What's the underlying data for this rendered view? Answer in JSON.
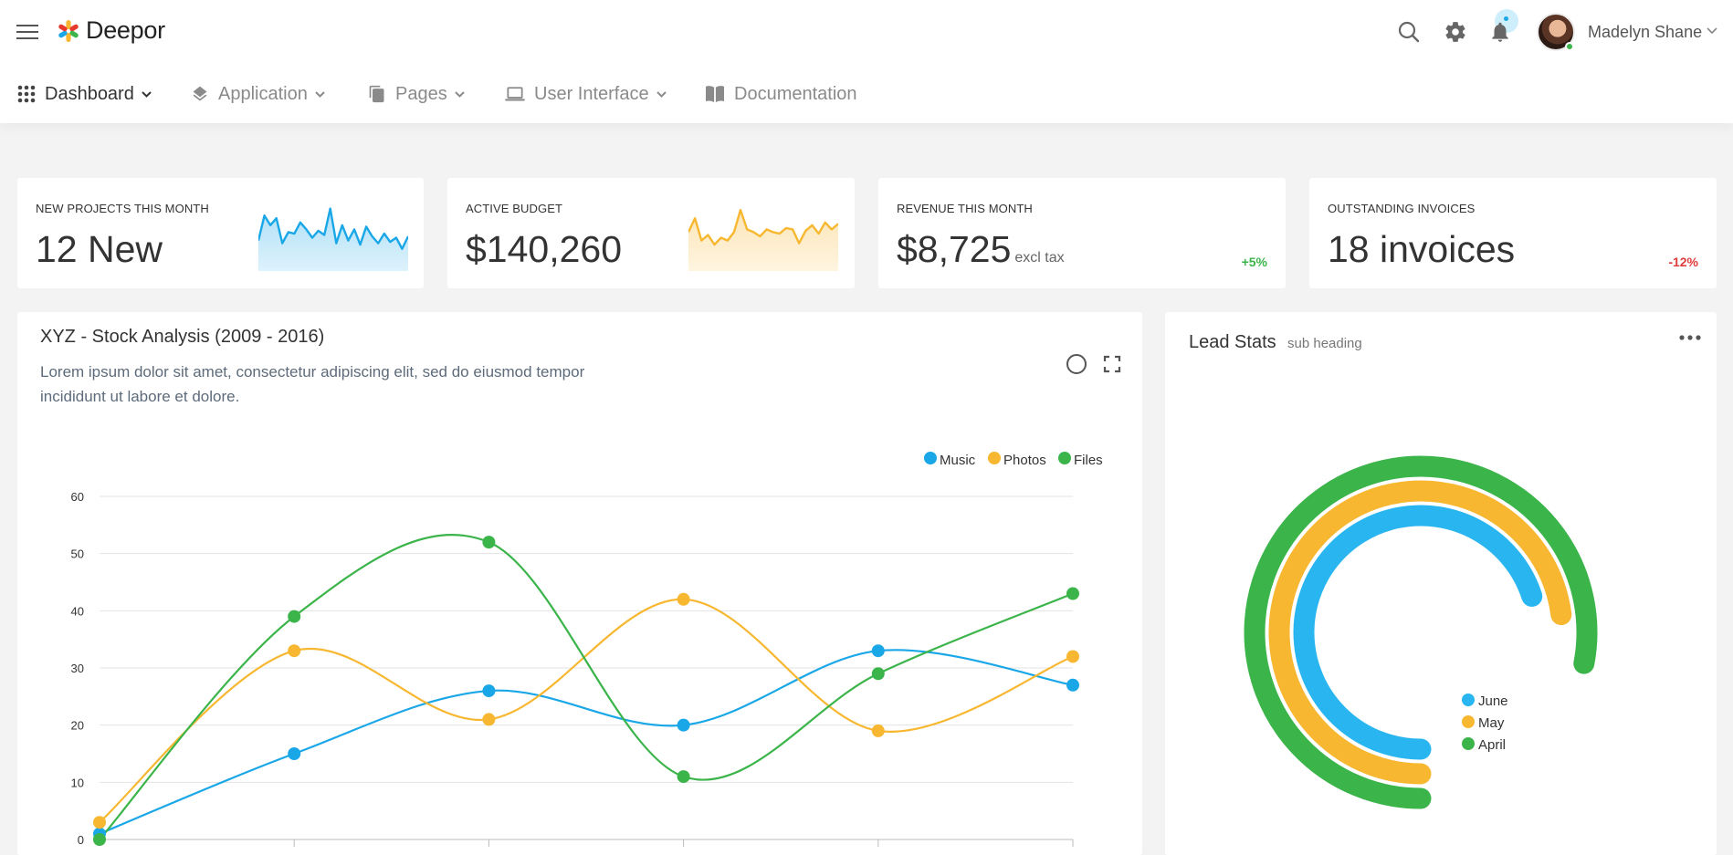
{
  "app": {
    "brand": "Deepor"
  },
  "user": {
    "name": "Madelyn Shane"
  },
  "nav": [
    {
      "label": "Dashboard",
      "icon": "grid-icon",
      "active": true,
      "caret": true
    },
    {
      "label": "Application",
      "icon": "layers-icon",
      "active": false,
      "caret": true
    },
    {
      "label": "Pages",
      "icon": "pages-icon",
      "active": false,
      "caret": true
    },
    {
      "label": "User Interface",
      "icon": "laptop-icon",
      "active": false,
      "caret": true
    },
    {
      "label": "Documentation",
      "icon": "book-icon",
      "active": false,
      "caret": false
    }
  ],
  "stats": [
    {
      "title": "NEW PROJECTS THIS MONTH",
      "value": "12 New",
      "sub": "",
      "change": "",
      "spark_color": "#1aa7e8",
      "spark": [
        22,
        40,
        33,
        38,
        20,
        28,
        27,
        35,
        30,
        24,
        29,
        26,
        45,
        20,
        33,
        22,
        30,
        19,
        32,
        25,
        20,
        27,
        21,
        24,
        16,
        25
      ]
    },
    {
      "title": "ACTIVE BUDGET",
      "value": "$140,260",
      "sub": "",
      "change": "",
      "spark_color": "#f7b731",
      "spark": [
        28,
        38,
        22,
        26,
        19,
        24,
        22,
        28,
        44,
        30,
        28,
        25,
        30,
        28,
        27,
        31,
        30,
        20,
        29,
        33,
        27,
        35,
        30,
        34
      ]
    },
    {
      "title": "REVENUE THIS MONTH",
      "value": "$8,725",
      "sub": "excl tax",
      "change": "+5%",
      "change_dir": "up"
    },
    {
      "title": "OUTSTANDING INVOICES",
      "value": "18 invoices",
      "sub": "",
      "change": "-12%",
      "change_dir": "down"
    }
  ],
  "stock": {
    "title": "XYZ - Stock Analysis (2009 - 2016)",
    "description": "Lorem ipsum dolor sit amet, consectetur adipiscing elit, sed do eiusmod tempor incididunt ut labore et dolore."
  },
  "lead": {
    "title": "Lead Stats",
    "sub": "sub heading"
  },
  "colors": {
    "blue": "#1aa7e8",
    "yellow": "#f7b731",
    "green": "#3bb44a",
    "radial_blue": "#29b6f0"
  },
  "chart_data": [
    {
      "type": "line",
      "title": "XYZ - Stock Analysis (2009 - 2016)",
      "x": [
        0,
        1,
        2,
        3,
        4,
        5
      ],
      "ylim": [
        0,
        60
      ],
      "yticks": [
        0,
        10,
        20,
        30,
        40,
        50,
        60
      ],
      "grid": true,
      "legend": "top-right",
      "series": [
        {
          "name": "Music",
          "color": "#1aa7e8",
          "values": [
            1,
            15,
            26,
            20,
            33,
            27
          ]
        },
        {
          "name": "Photos",
          "color": "#f7b731",
          "values": [
            3,
            33,
            21,
            42,
            19,
            32
          ]
        },
        {
          "name": "Files",
          "color": "#3bb44a",
          "values": [
            0,
            39,
            52,
            11,
            29,
            43
          ]
        }
      ]
    },
    {
      "type": "radialBar",
      "legend": "center",
      "series": [
        {
          "name": "June",
          "color": "#29b6f0",
          "value": 70
        },
        {
          "name": "May",
          "color": "#f7b731",
          "value": 73
        },
        {
          "name": "April",
          "color": "#3bb44a",
          "value": 78
        }
      ]
    }
  ]
}
